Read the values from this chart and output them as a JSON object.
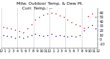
{
  "title_line1": "Milw. Outdoor Temp. & Dew Pt.",
  "title_line2": "Curr. Temp.: --",
  "background_color": "#ffffff",
  "grid_color": "#888888",
  "temp_color": "#cc0000",
  "dew_color": "#0000cc",
  "black_color": "#000000",
  "ylim": [
    -20,
    70
  ],
  "yticks": [
    -10,
    0,
    10,
    20,
    30,
    40,
    50,
    60
  ],
  "ytick_labels": [
    "-10",
    "0",
    "10",
    "20",
    "30",
    "40",
    "50",
    "60"
  ],
  "xlim": [
    0,
    48
  ],
  "xtick_positions": [
    0,
    2,
    4,
    6,
    8,
    10,
    12,
    14,
    16,
    18,
    20,
    22,
    24,
    26,
    28,
    30,
    32,
    34,
    36,
    38,
    40,
    42,
    44,
    46,
    48
  ],
  "xtick_labels": [
    "12",
    "1",
    "2",
    "3",
    "4",
    "5",
    "6",
    "7",
    "8",
    "9",
    "10",
    "11",
    "12",
    "1",
    "2",
    "3",
    "4",
    "5",
    "6",
    "7",
    "8",
    "9",
    "10",
    "11",
    "12"
  ],
  "vgrid_x": [
    0,
    8,
    16,
    24,
    32,
    40,
    48
  ],
  "temp_x": [
    1,
    3,
    5,
    7,
    9,
    11,
    13,
    15,
    17,
    19,
    21,
    23,
    25,
    27,
    29,
    31,
    33,
    35,
    37,
    39,
    41,
    43,
    45,
    47
  ],
  "temp_y": [
    28,
    26,
    24,
    22,
    18,
    16,
    24,
    34,
    44,
    50,
    55,
    58,
    60,
    58,
    54,
    50,
    44,
    38,
    34,
    30,
    26,
    52,
    58,
    50
  ],
  "dew_x": [
    1,
    3,
    5,
    7,
    9,
    11,
    13,
    15,
    17,
    19,
    21,
    23,
    25,
    27,
    29,
    31,
    33,
    35,
    37,
    39,
    41,
    43,
    45,
    47
  ],
  "dew_y": [
    10,
    8,
    6,
    4,
    6,
    4,
    6,
    10,
    12,
    10,
    8,
    10,
    12,
    8,
    10,
    8,
    6,
    8,
    6,
    10,
    20,
    28,
    32,
    24
  ],
  "marker_size": 1.2,
  "title_fontsize": 4.5,
  "tick_fontsize": 3.5
}
